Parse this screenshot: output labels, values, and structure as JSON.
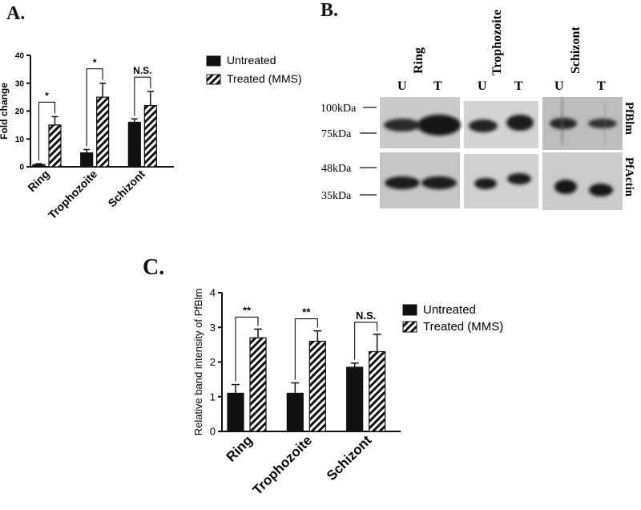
{
  "panels": {
    "a_label": "A.",
    "b_label": "B.",
    "c_label": "C."
  },
  "chart_data": [
    {
      "panel": "A",
      "type": "bar",
      "title": "",
      "xlabel": "",
      "ylabel": "Fold change",
      "ylim": [
        0,
        40
      ],
      "yticks": [
        "0",
        "10",
        "20",
        "30",
        "40"
      ],
      "categories": [
        "Ring",
        "Trophozoite",
        "Schizont"
      ],
      "series": [
        {
          "name": "Untreated",
          "values": [
            0.8,
            5,
            16
          ],
          "errors": [
            0.3,
            1.2,
            1.2
          ],
          "fill": "solid"
        },
        {
          "name": "Treated (MMS)",
          "values": [
            15,
            25,
            22
          ],
          "errors": [
            3,
            5,
            5
          ],
          "fill": "hatch"
        }
      ],
      "significance": [
        "*",
        "*",
        "N.S."
      ],
      "legend_position": "right"
    },
    {
      "panel": "C",
      "type": "bar",
      "title": "",
      "xlabel": "",
      "ylabel": "Relative band intensity of PfBlm",
      "ylim": [
        0,
        4
      ],
      "yticks": [
        "0",
        "1",
        "2",
        "3",
        "4"
      ],
      "categories": [
        "Ring",
        "Trophozoite",
        "Schizont"
      ],
      "series": [
        {
          "name": "Untreated",
          "values": [
            1.1,
            1.1,
            1.85
          ],
          "errors": [
            0.25,
            0.3,
            0.12
          ],
          "fill": "solid"
        },
        {
          "name": "Treated (MMS)",
          "values": [
            2.7,
            2.6,
            2.3
          ],
          "errors": [
            0.25,
            0.3,
            0.5
          ],
          "fill": "hatch"
        }
      ],
      "significance": [
        "**",
        "**",
        "N.S."
      ],
      "legend_position": "right"
    }
  ],
  "blot": {
    "stages": [
      "Ring",
      "Trophozoite",
      "Schizont"
    ],
    "lanes": [
      "U",
      "T",
      "U",
      "T",
      "U",
      "T"
    ],
    "markers": [
      "100kDa",
      "75kDa",
      "48kDa",
      "35kDa"
    ],
    "proteins": [
      "PfBlm",
      "PfActin"
    ]
  }
}
